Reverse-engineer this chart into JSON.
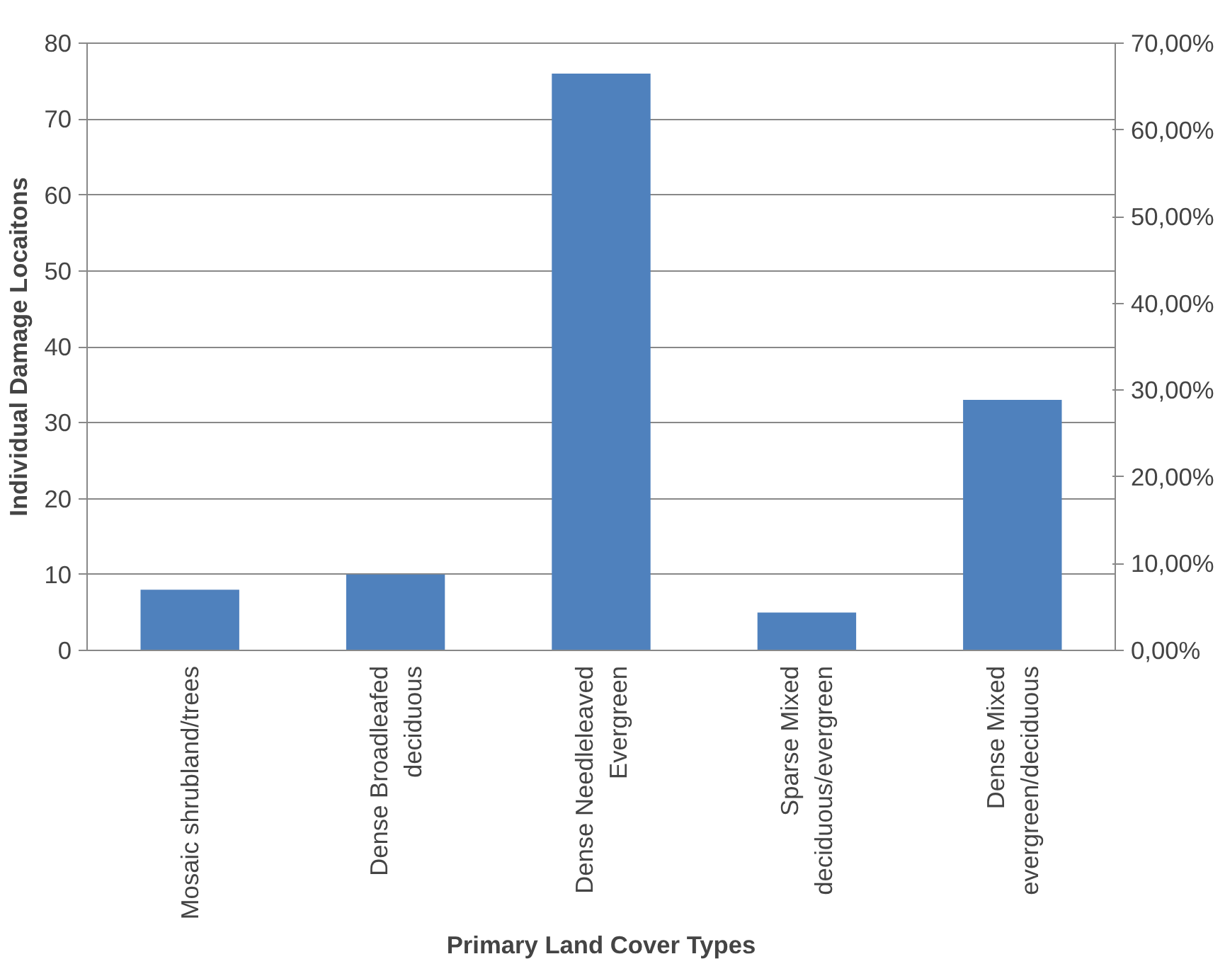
{
  "chart_data": {
    "type": "bar",
    "xlabel": "Primary Land Cover Types",
    "ylabel": "Individual Damage Locaitons",
    "categories": [
      "Mosaic shrubland/trees",
      "Dense Broadleafed deciduous",
      "Dense Needleleaved Evergreen",
      "Sparse Mixed deciduous/evergreen",
      "Dense Mixed evergreen/deciduous"
    ],
    "values": [
      8,
      10,
      76,
      5,
      33
    ],
    "color": "#4f81bd",
    "ylim": [
      0,
      80
    ],
    "yticks": [
      0,
      10,
      20,
      30,
      40,
      50,
      60,
      70,
      80
    ],
    "y2lim": [
      0,
      70
    ],
    "y2ticks": [
      {
        "value": 0,
        "label": "0,00%"
      },
      {
        "value": 10,
        "label": "10,00%"
      },
      {
        "value": 20,
        "label": "20,00%"
      },
      {
        "value": 30,
        "label": "30,00%"
      },
      {
        "value": 40,
        "label": "40,00%"
      },
      {
        "value": 50,
        "label": "50,00%"
      },
      {
        "value": 60,
        "label": "60,00%"
      },
      {
        "value": 70,
        "label": "70,00%"
      }
    ],
    "grid": "y"
  }
}
